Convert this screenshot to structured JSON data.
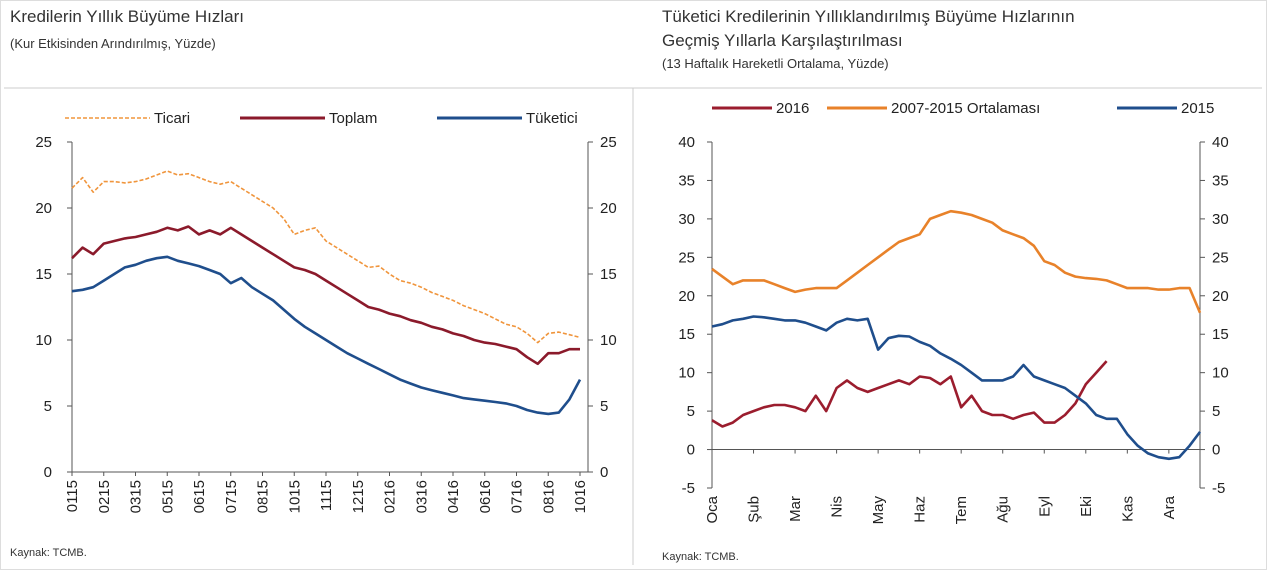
{
  "chart_data": [
    {
      "type": "line",
      "title": [
        "Kredilerin Yıllık Büyüme Hızları"
      ],
      "subtitle": "(Kur Etkisinden Arındırılmış, Yüzde)",
      "source": "Kaynak: TCMB.",
      "categories": [
        "0115",
        null,
        null,
        "0215",
        null,
        null,
        "0315",
        null,
        null,
        "0515",
        null,
        null,
        "0615",
        null,
        null,
        "0715",
        null,
        null,
        "0815",
        null,
        null,
        "1015",
        null,
        null,
        "1115",
        null,
        null,
        "1215",
        null,
        null,
        "0216",
        null,
        null,
        "0316",
        null,
        null,
        "0416",
        null,
        null,
        "0616",
        null,
        null,
        "0716",
        null,
        null,
        "0816",
        null,
        null,
        "1016"
      ],
      "series": [
        {
          "name": "Ticari",
          "color": "#f0953c",
          "style": "dashed",
          "values": [
            21.5,
            22.3,
            21.2,
            22.0,
            22.0,
            21.9,
            22.0,
            22.2,
            22.5,
            22.8,
            22.5,
            22.6,
            22.3,
            22.0,
            21.8,
            22.0,
            21.5,
            21.0,
            20.5,
            20.0,
            19.2,
            18.0,
            18.3,
            18.5,
            17.5,
            17.0,
            16.5,
            16.0,
            15.5,
            15.6,
            15.0,
            14.5,
            14.3,
            14.0,
            13.6,
            13.3,
            13.0,
            12.6,
            12.3,
            12.0,
            11.6,
            11.2,
            11.0,
            10.5,
            9.8,
            10.5,
            10.6,
            10.4,
            10.2
          ]
        },
        {
          "name": "Toplam",
          "color": "#8b1a2b",
          "style": "solid",
          "values": [
            16.2,
            17.0,
            16.5,
            17.3,
            17.5,
            17.7,
            17.8,
            18.0,
            18.2,
            18.5,
            18.3,
            18.6,
            18.0,
            18.3,
            18.0,
            18.5,
            18.0,
            17.5,
            17.0,
            16.5,
            16.0,
            15.5,
            15.3,
            15.0,
            14.5,
            14.0,
            13.5,
            13.0,
            12.5,
            12.3,
            12.0,
            11.8,
            11.5,
            11.3,
            11.0,
            10.8,
            10.5,
            10.3,
            10.0,
            9.8,
            9.7,
            9.5,
            9.3,
            8.7,
            8.2,
            9.0,
            9.0,
            9.3,
            9.3
          ]
        },
        {
          "name": "Tüketici",
          "color": "#1f4e8c",
          "style": "solid",
          "values": [
            13.7,
            13.8,
            14.0,
            14.5,
            15.0,
            15.5,
            15.7,
            16.0,
            16.2,
            16.3,
            16.0,
            15.8,
            15.6,
            15.3,
            15.0,
            14.3,
            14.7,
            14.0,
            13.5,
            13.0,
            12.3,
            11.6,
            11.0,
            10.5,
            10.0,
            9.5,
            9.0,
            8.6,
            8.2,
            7.8,
            7.4,
            7.0,
            6.7,
            6.4,
            6.2,
            6.0,
            5.8,
            5.6,
            5.5,
            5.4,
            5.3,
            5.2,
            5.0,
            4.7,
            4.5,
            4.4,
            4.5,
            5.5,
            7.0
          ]
        }
      ],
      "ylim": [
        0,
        25
      ],
      "yticks": [
        0,
        5,
        10,
        15,
        20,
        25
      ],
      "y2lim": [
        0,
        25
      ],
      "y2ticks": [
        0,
        5,
        10,
        15,
        20,
        25
      ]
    },
    {
      "type": "line",
      "title": [
        "Tüketici Kredilerinin Yıllıklandırılmış Büyüme Hızlarının",
        "Geçmiş Yıllarla Karşılaştırılması"
      ],
      "subtitle": "(13 Haftalık Hareketli Ortalama, Yüzde)",
      "source": "Kaynak: TCMB.",
      "categories": [
        "Oca",
        null,
        null,
        null,
        "Şub",
        null,
        null,
        null,
        "Mar",
        null,
        null,
        null,
        "Nis",
        null,
        null,
        null,
        "May",
        null,
        null,
        null,
        "Haz",
        null,
        null,
        null,
        "Tem",
        null,
        null,
        null,
        "Ağu",
        null,
        null,
        null,
        "Eyl",
        null,
        null,
        null,
        "Eki",
        null,
        null,
        null,
        "Kas",
        null,
        null,
        null,
        "Ara",
        null,
        null,
        null
      ],
      "series": [
        {
          "name": "2016",
          "color": "#9b1d2e",
          "style": "solid",
          "values": [
            3.8,
            3.0,
            3.5,
            4.5,
            5.0,
            5.5,
            5.8,
            5.8,
            5.5,
            5.0,
            7.0,
            5.0,
            8.0,
            9.0,
            8.0,
            7.5,
            8.0,
            8.5,
            9.0,
            8.5,
            9.5,
            9.3,
            8.5,
            9.5,
            5.5,
            7.0,
            5.0,
            4.5,
            4.5,
            4.0,
            4.5,
            4.8,
            3.5,
            3.5,
            4.5,
            6.0,
            8.5,
            10.0,
            11.5,
            null,
            null,
            null,
            null,
            null,
            null,
            null,
            null,
            null
          ]
        },
        {
          "name": "2007-2015 Ortalaması",
          "color": "#e8822a",
          "style": "solid",
          "values": [
            23.5,
            22.5,
            21.5,
            22.0,
            22.0,
            22.0,
            21.5,
            21.0,
            20.5,
            20.8,
            21.0,
            21.0,
            21.0,
            22.0,
            23.0,
            24.0,
            25.0,
            26.0,
            27.0,
            27.5,
            28.0,
            30.0,
            30.5,
            31.0,
            30.8,
            30.5,
            30.0,
            29.5,
            28.5,
            28.0,
            27.5,
            26.5,
            24.5,
            24.0,
            23.0,
            22.5,
            22.3,
            22.2,
            22.0,
            21.5,
            21.0,
            21.0,
            21.0,
            20.8,
            20.8,
            21.0,
            21.0,
            17.8
          ]
        },
        {
          "name": "2015",
          "color": "#1f4e8c",
          "style": "solid",
          "values": [
            16.0,
            16.3,
            16.8,
            17.0,
            17.3,
            17.2,
            17.0,
            16.8,
            16.8,
            16.5,
            16.0,
            15.5,
            16.5,
            17.0,
            16.8,
            17.0,
            13.0,
            14.5,
            14.8,
            14.7,
            14.0,
            13.5,
            12.5,
            11.8,
            11.0,
            10.0,
            9.0,
            9.0,
            9.0,
            9.5,
            11.0,
            9.5,
            9.0,
            8.5,
            8.0,
            7.0,
            6.0,
            4.5,
            4.0,
            4.0,
            2.0,
            0.5,
            -0.5,
            -1.0,
            -1.2,
            -1.0,
            0.5,
            2.3
          ]
        }
      ],
      "ylim": [
        -5,
        40
      ],
      "yticks": [
        -5,
        0,
        5,
        10,
        15,
        20,
        25,
        30,
        35,
        40
      ],
      "y2lim": [
        -5,
        40
      ],
      "y2ticks": [
        -5,
        0,
        5,
        10,
        15,
        20,
        25,
        30,
        35,
        40
      ]
    }
  ]
}
